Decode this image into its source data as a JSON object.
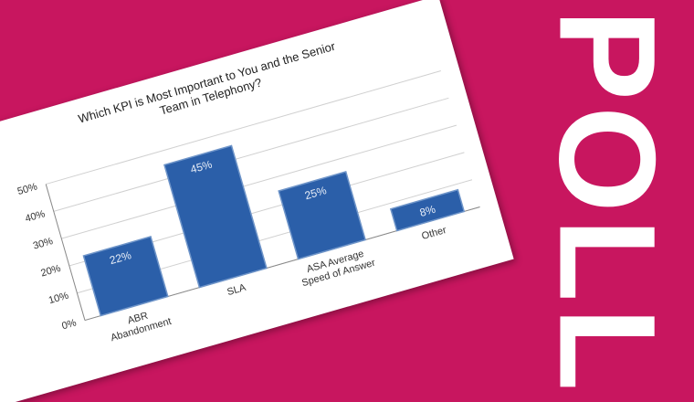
{
  "side_text": "POLL",
  "chart_data": {
    "type": "bar",
    "title": "Which KPI is Most Important to You and the Senior Team in Telephony?",
    "categories": [
      "ABR Abandonment",
      "SLA",
      "ASA Average Speed of Answer",
      "Other"
    ],
    "values": [
      22,
      45,
      25,
      8
    ],
    "value_labels": [
      "22%",
      "45%",
      "25%",
      "8%"
    ],
    "color": "#2b5fa9",
    "ylim": [
      0,
      50
    ],
    "yticks": [
      {
        "value": 0,
        "label": "0%"
      },
      {
        "value": 10,
        "label": "10%"
      },
      {
        "value": 20,
        "label": "20%"
      },
      {
        "value": 30,
        "label": "30%"
      },
      {
        "value": 40,
        "label": "40%"
      },
      {
        "value": 50,
        "label": "50%"
      }
    ],
    "grid": true
  }
}
